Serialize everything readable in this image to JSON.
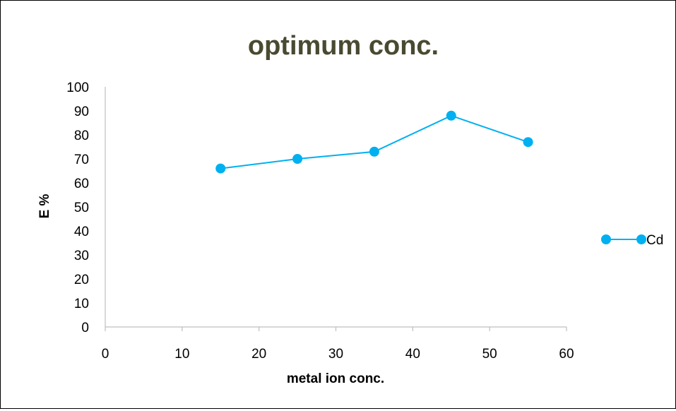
{
  "chart_data": {
    "type": "line",
    "title": "optimum conc.",
    "xlabel": "metal ion conc.",
    "ylabel": "E %",
    "xlim": [
      0,
      60
    ],
    "ylim": [
      0,
      100
    ],
    "x_ticks": [
      0,
      10,
      20,
      30,
      40,
      50,
      60
    ],
    "y_ticks": [
      0,
      10,
      20,
      30,
      40,
      50,
      60,
      70,
      80,
      90,
      100
    ],
    "grid": false,
    "legend_position": "right",
    "series": [
      {
        "name": "Cd",
        "color": "#00B0F0",
        "points": [
          {
            "x": 15,
            "y": 66
          },
          {
            "x": 25,
            "y": 70
          },
          {
            "x": 35,
            "y": 73
          },
          {
            "x": 45,
            "y": 88
          },
          {
            "x": 55,
            "y": 77
          }
        ]
      }
    ],
    "title_color": "#4A4A32"
  }
}
